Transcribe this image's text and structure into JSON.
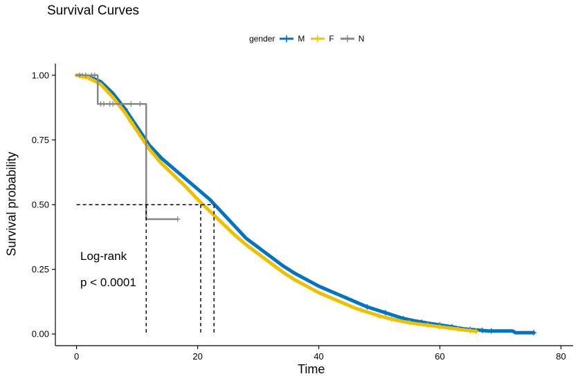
{
  "chart_data": {
    "type": "line",
    "title": "Survival Curves",
    "xlabel": "Time",
    "ylabel": "Survival probability",
    "xlim": [
      -3.5,
      82
    ],
    "ylim": [
      -0.045,
      1.045
    ],
    "x_ticks": [
      0,
      20,
      40,
      60,
      80
    ],
    "x_tick_labels": [
      "0",
      "20",
      "40",
      "60",
      "80"
    ],
    "y_ticks": [
      0.0,
      0.25,
      0.5,
      0.75,
      1.0
    ],
    "y_tick_labels": [
      "0.00",
      "0.25",
      "0.50",
      "0.75",
      "1.00"
    ],
    "grid": false,
    "legend": {
      "title": "gender",
      "position": "top",
      "entries": [
        "M",
        "F",
        "N"
      ]
    },
    "annotations": {
      "test_name": "Log-rank",
      "p_value": "p < 0.0001"
    },
    "median_reference": {
      "y": 0.5,
      "medians": [
        {
          "series": "N",
          "x": 11.5
        },
        {
          "series": "F",
          "x": 20.5
        },
        {
          "series": "M",
          "x": 22.7
        }
      ]
    },
    "series": [
      {
        "name": "M",
        "color": "#0073C2",
        "step": false,
        "points": [
          [
            0,
            1.0
          ],
          [
            2,
            0.995
          ],
          [
            4,
            0.975
          ],
          [
            6,
            0.93
          ],
          [
            8,
            0.87
          ],
          [
            10,
            0.8
          ],
          [
            12,
            0.73
          ],
          [
            14,
            0.68
          ],
          [
            16,
            0.64
          ],
          [
            18,
            0.6
          ],
          [
            20,
            0.56
          ],
          [
            22,
            0.52
          ],
          [
            24,
            0.47
          ],
          [
            26,
            0.42
          ],
          [
            28,
            0.37
          ],
          [
            30,
            0.335
          ],
          [
            32,
            0.3
          ],
          [
            34,
            0.265
          ],
          [
            36,
            0.235
          ],
          [
            38,
            0.21
          ],
          [
            40,
            0.185
          ],
          [
            42,
            0.165
          ],
          [
            44,
            0.145
          ],
          [
            46,
            0.125
          ],
          [
            48,
            0.105
          ],
          [
            50,
            0.09
          ],
          [
            52,
            0.075
          ],
          [
            54,
            0.06
          ],
          [
            56,
            0.05
          ],
          [
            58,
            0.042
          ],
          [
            60,
            0.035
          ],
          [
            62,
            0.028
          ],
          [
            64,
            0.02
          ],
          [
            66,
            0.016
          ],
          [
            68,
            0.012
          ],
          [
            70,
            0.012
          ],
          [
            72,
            0.012
          ],
          [
            72.5,
            0.005
          ],
          [
            75.5,
            0.005
          ]
        ],
        "censor_x": [
          1,
          3,
          8,
          48,
          51,
          54,
          57,
          60,
          62,
          65,
          67,
          68.5,
          75.5
        ]
      },
      {
        "name": "F",
        "color": "#EFC000",
        "step": false,
        "points": [
          [
            0,
            1.0
          ],
          [
            2,
            0.99
          ],
          [
            4,
            0.965
          ],
          [
            6,
            0.915
          ],
          [
            8,
            0.855
          ],
          [
            10,
            0.785
          ],
          [
            12,
            0.715
          ],
          [
            14,
            0.66
          ],
          [
            16,
            0.615
          ],
          [
            18,
            0.57
          ],
          [
            20,
            0.52
          ],
          [
            22,
            0.475
          ],
          [
            24,
            0.43
          ],
          [
            26,
            0.385
          ],
          [
            28,
            0.345
          ],
          [
            30,
            0.31
          ],
          [
            32,
            0.275
          ],
          [
            34,
            0.24
          ],
          [
            36,
            0.21
          ],
          [
            38,
            0.185
          ],
          [
            40,
            0.16
          ],
          [
            42,
            0.14
          ],
          [
            44,
            0.12
          ],
          [
            46,
            0.1
          ],
          [
            48,
            0.085
          ],
          [
            50,
            0.07
          ],
          [
            52,
            0.058
          ],
          [
            54,
            0.048
          ],
          [
            56,
            0.04
          ],
          [
            58,
            0.034
          ],
          [
            60,
            0.028
          ],
          [
            62,
            0.022
          ],
          [
            64,
            0.016
          ],
          [
            66,
            0.01
          ]
        ],
        "censor_x": [
          1,
          2,
          9,
          47,
          50,
          52,
          55,
          58,
          60,
          63,
          65,
          66
        ]
      },
      {
        "name": "N",
        "color": "#868686",
        "step": true,
        "points": [
          [
            0,
            1.0
          ],
          [
            3.5,
            1.0
          ],
          [
            3.5,
            0.889
          ],
          [
            11.5,
            0.889
          ],
          [
            11.5,
            0.444
          ],
          [
            16.7,
            0.444
          ]
        ],
        "censor_x": [
          0.5,
          1.5,
          2.5,
          3,
          4,
          4.5,
          5.5,
          6,
          9,
          10.5,
          16.7
        ]
      }
    ]
  }
}
